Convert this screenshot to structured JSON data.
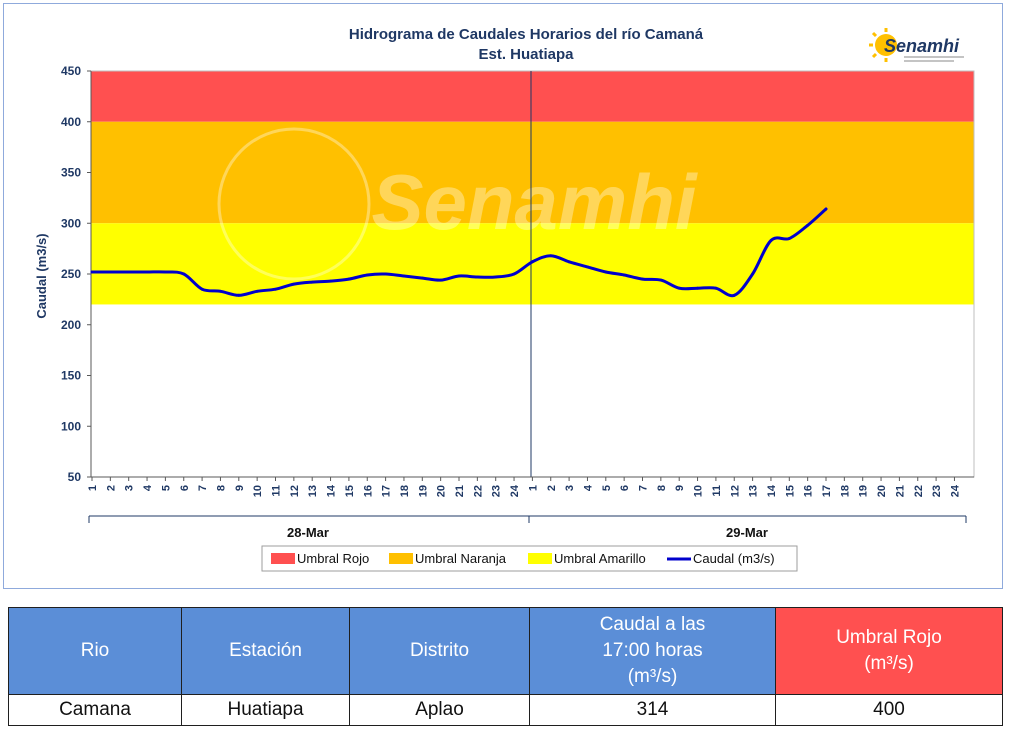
{
  "colors": {
    "rojo": "#ff5050",
    "naranja": "#ffc000",
    "amarillo": "#ffff00",
    "caudal": "#0000cc",
    "header_blue": "#5b8ed7",
    "header_red": "#ff5050"
  },
  "chart_data": {
    "type": "line",
    "title": "Hidrograma de Caudales Horarios del río Camaná",
    "subtitle": "Est. Huatiapa",
    "ylabel": "Caudal  (m3/s)",
    "ylim": [
      50,
      450
    ],
    "yticks": [
      50,
      100,
      150,
      200,
      250,
      300,
      350,
      400,
      450
    ],
    "x_tick_labels": [
      "1",
      "2",
      "3",
      "4",
      "5",
      "6",
      "7",
      "8",
      "9",
      "10",
      "11",
      "12",
      "13",
      "14",
      "15",
      "16",
      "17",
      "18",
      "19",
      "20",
      "21",
      "22",
      "23",
      "24",
      "1",
      "2",
      "3",
      "4",
      "5",
      "6",
      "7",
      "8",
      "9",
      "10",
      "11",
      "12",
      "13",
      "14",
      "15",
      "16",
      "17",
      "18",
      "19",
      "20",
      "21",
      "22",
      "23",
      "24"
    ],
    "day_labels": [
      "28-Mar",
      "29-Mar"
    ],
    "thresholds": [
      {
        "name": "Umbral Rojo",
        "from": 400,
        "to": 450,
        "color": "#ff5050"
      },
      {
        "name": "Umbral Naranja",
        "from": 300,
        "to": 400,
        "color": "#ffc000"
      },
      {
        "name": "Umbral Amarillo",
        "from": 220,
        "to": 300,
        "color": "#ffff00"
      }
    ],
    "series": [
      {
        "name": "Caudal (m3/s)",
        "color": "#0000cc",
        "values": [
          252,
          252,
          252,
          252,
          252,
          250,
          235,
          233,
          229,
          233,
          235,
          240,
          242,
          243,
          245,
          249,
          250,
          248,
          246,
          244,
          248,
          247,
          247,
          250,
          262,
          268,
          262,
          257,
          252,
          249,
          245,
          244,
          236,
          236,
          236,
          229,
          250,
          283,
          285,
          298,
          314
        ]
      }
    ],
    "legend": {
      "position": "bottom",
      "items": [
        "Umbral Rojo",
        "Umbral Naranja",
        "Umbral Amarillo",
        "Caudal (m3/s)"
      ]
    },
    "watermark": "Senamhi",
    "logo_text": "Senamhi"
  },
  "table": {
    "headers": {
      "rio": "Rio",
      "estacion": "Estación",
      "distrito": "Distrito",
      "caudal_line1": "Caudal a las",
      "caudal_line2": "17:00 horas",
      "caudal_line3": "(m³/s)",
      "umbral_line1": "Umbral Rojo",
      "umbral_line2": "(m³/s)"
    },
    "row": {
      "rio": "Camana",
      "estacion": "Huatiapa",
      "distrito": "Aplao",
      "caudal": "314",
      "umbral": "400"
    }
  }
}
